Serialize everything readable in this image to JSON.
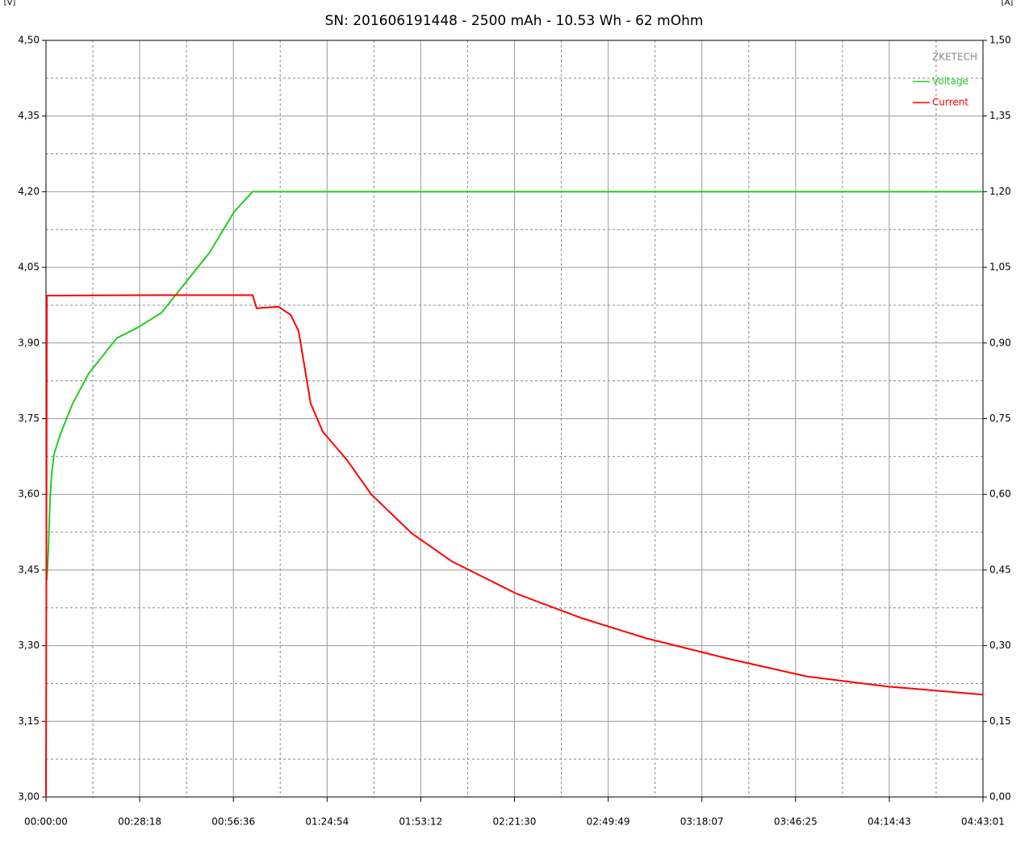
{
  "chart_data": {
    "type": "line",
    "title": "SN: 201606191448 - 2500 mAh - 10.53 Wh - 62 mOhm",
    "y_label": "[V]",
    "y2_label": "[A]",
    "watermark": "ZKETECH",
    "grid": true,
    "legend": "top-right",
    "xlim": [
      0,
      16981
    ],
    "xticks": [
      {
        "value": 0,
        "label": "00:00:00"
      },
      {
        "value": 1698,
        "label": "00:28:18"
      },
      {
        "value": 3396,
        "label": "00:56:36"
      },
      {
        "value": 5094,
        "label": "01:24:54"
      },
      {
        "value": 6792,
        "label": "01:53:12"
      },
      {
        "value": 8490,
        "label": "02:21:30"
      },
      {
        "value": 10189,
        "label": "02:49:49"
      },
      {
        "value": 11887,
        "label": "03:18:07"
      },
      {
        "value": 13585,
        "label": "03:46:25"
      },
      {
        "value": 15283,
        "label": "04:14:43"
      },
      {
        "value": 16981,
        "label": "04:43:01"
      }
    ],
    "ylim": [
      3.0,
      4.5
    ],
    "yticks": [
      {
        "value": 3.0,
        "label": "3,00"
      },
      {
        "value": 3.15,
        "label": "3,15"
      },
      {
        "value": 3.3,
        "label": "3,30"
      },
      {
        "value": 3.45,
        "label": "3,45"
      },
      {
        "value": 3.6,
        "label": "3,60"
      },
      {
        "value": 3.75,
        "label": "3,75"
      },
      {
        "value": 3.9,
        "label": "3,90"
      },
      {
        "value": 4.05,
        "label": "4,05"
      },
      {
        "value": 4.2,
        "label": "4,20"
      },
      {
        "value": 4.35,
        "label": "4,35"
      },
      {
        "value": 4.5,
        "label": "4,50"
      }
    ],
    "y2lim": [
      0,
      1.5
    ],
    "y2ticks": [
      {
        "value": 0,
        "label": "0,00"
      },
      {
        "value": 0.15,
        "label": "0,15"
      },
      {
        "value": 0.3,
        "label": "0,30"
      },
      {
        "value": 0.45,
        "label": "0,45"
      },
      {
        "value": 0.6,
        "label": "0,60"
      },
      {
        "value": 0.75,
        "label": "0,75"
      },
      {
        "value": 0.9,
        "label": "0,90"
      },
      {
        "value": 1.05,
        "label": "1,05"
      },
      {
        "value": 1.2,
        "label": "1,20"
      },
      {
        "value": 1.35,
        "label": "1,35"
      },
      {
        "value": 1.5,
        "label": "1,50"
      }
    ],
    "series": [
      {
        "name": "Voltage",
        "color": "#22cc22",
        "x": [
          15,
          44,
          73,
          102,
          146,
          263,
          483,
          775,
          1068,
          1287,
          1653,
          2092,
          2530,
          2969,
          3408,
          3744,
          16981
        ],
        "values": [
          3.43,
          3.49,
          3.59,
          3.64,
          3.68,
          3.72,
          3.78,
          3.84,
          3.88,
          3.91,
          3.93,
          3.96,
          4.02,
          4.08,
          4.16,
          4.2,
          4.2
        ]
      },
      {
        "name": "Current",
        "color": "#ff0000",
        "axis": "y2",
        "x": [
          0,
          15,
          2092,
          3744,
          3817,
          4212,
          4432,
          4578,
          4651,
          4797,
          5017,
          5456,
          5894,
          6626,
          7357,
          8527,
          9697,
          10867,
          12330,
          13792,
          15255,
          16981
        ],
        "values": [
          0,
          0.994,
          0.995,
          0.995,
          0.969,
          0.972,
          0.956,
          0.924,
          0.876,
          0.78,
          0.724,
          0.668,
          0.6,
          0.523,
          0.467,
          0.403,
          0.355,
          0.315,
          0.275,
          0.239,
          0.219,
          0.203
        ]
      }
    ]
  }
}
